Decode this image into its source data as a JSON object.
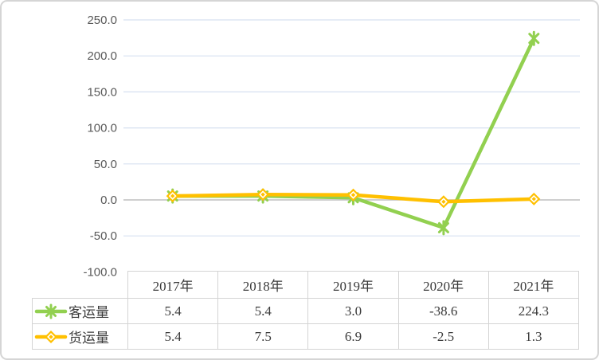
{
  "chart_data": {
    "type": "line",
    "title": "",
    "xlabel": "",
    "ylabel": "",
    "categories": [
      "2017年",
      "2018年",
      "2019年",
      "2020年",
      "2021年"
    ],
    "series": [
      {
        "name": "客运量",
        "marker": "star",
        "color": "#92D050",
        "values": [
          5.4,
          5.4,
          3.0,
          -38.6,
          224.3
        ]
      },
      {
        "name": "货运量",
        "marker": "diamond",
        "color": "#FFC000",
        "values": [
          5.4,
          7.5,
          6.9,
          -2.5,
          1.3
        ]
      }
    ],
    "ylim": [
      -100,
      250
    ],
    "yticks": [
      250,
      200,
      150,
      100,
      50,
      0,
      -50,
      -100
    ],
    "ytick_labels": [
      "250.0",
      "200.0",
      "150.0",
      "100.0",
      "50.0",
      "0.0",
      "-50.0",
      "-100.0"
    ],
    "grid": true,
    "legend_position": "data-table-left",
    "value_decimals": 1,
    "colors": {
      "background": "#FFFFFF",
      "frame_border": "#D5D5D5",
      "gridline": "#D6E0F0",
      "zero_axis": "#BFBFBF",
      "tick_label": "#595959",
      "table_border": "#D4D4D4",
      "table_text": "#3B3B3B"
    }
  }
}
